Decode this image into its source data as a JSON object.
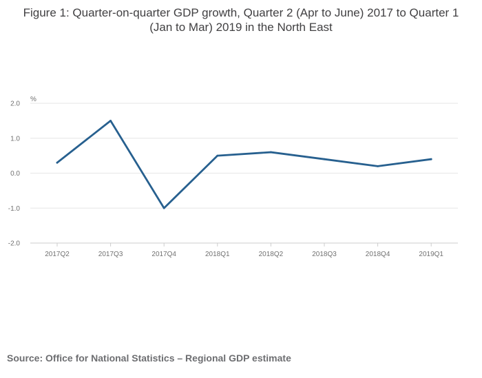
{
  "chart_data": {
    "type": "line",
    "title": "Figure 1: Quarter-on-quarter GDP growth, Quarter 2 (Apr to June) 2017 to Quarter 1 (Jan to Mar) 2019 in the North East",
    "xlabel": "",
    "ylabel": "%",
    "categories": [
      "2017Q2",
      "2017Q3",
      "2017Q4",
      "2018Q1",
      "2018Q2",
      "2018Q3",
      "2018Q4",
      "2019Q1"
    ],
    "series": [
      {
        "name": "Quarter-on-quarter GDP growth",
        "values": [
          0.3,
          1.5,
          -1.0,
          0.5,
          0.6,
          0.4,
          0.2,
          0.4
        ]
      }
    ],
    "ylim": [
      -2.0,
      2.0
    ],
    "yticks": [
      2.0,
      1.0,
      0.0,
      -1.0,
      -2.0
    ],
    "ytick_labels": [
      "2.0",
      "1.0",
      "0.0",
      "-1.0",
      "-2.0"
    ],
    "grid": true,
    "legend": "none"
  },
  "colors": {
    "line": "#27608f",
    "grid": "#e6e6e6",
    "axis": "#cccccc"
  },
  "source": {
    "text": "Source: Office for National Statistics – Regional GDP estimate"
  }
}
